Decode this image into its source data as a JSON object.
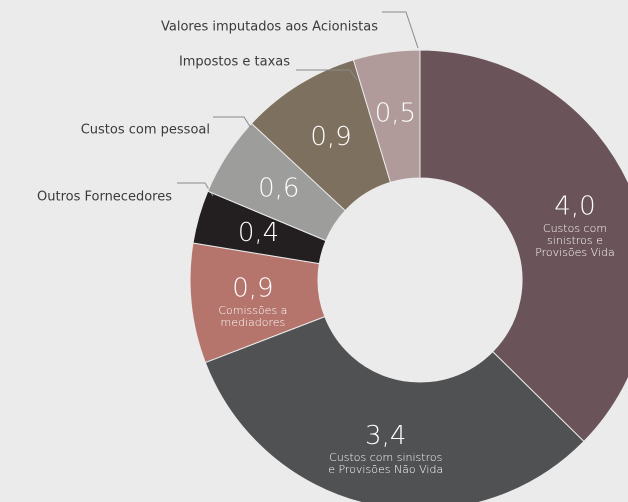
{
  "chart_data": {
    "type": "donut",
    "categories": [
      "Custos com sinistros e Provisões Vida",
      "Custos com sinistros e Provisões Não Vida",
      "Comissões a mediadores",
      "Outros Fornecedores",
      "Custos com pessoal",
      "Impostos e taxas",
      "Valores imputados aos Acionistas"
    ],
    "values": [
      4.0,
      3.4,
      0.9,
      0.4,
      0.6,
      0.9,
      0.5
    ],
    "value_labels": [
      "4,0",
      "3,4",
      "0,9",
      "0,4",
      "0,6",
      "0,9",
      "0,5"
    ],
    "colors": [
      "#6b5459",
      "#4f5153",
      "#b5756c",
      "#231f20",
      "#9d9d9c",
      "#7e705f",
      "#b09a9a"
    ]
  }
}
